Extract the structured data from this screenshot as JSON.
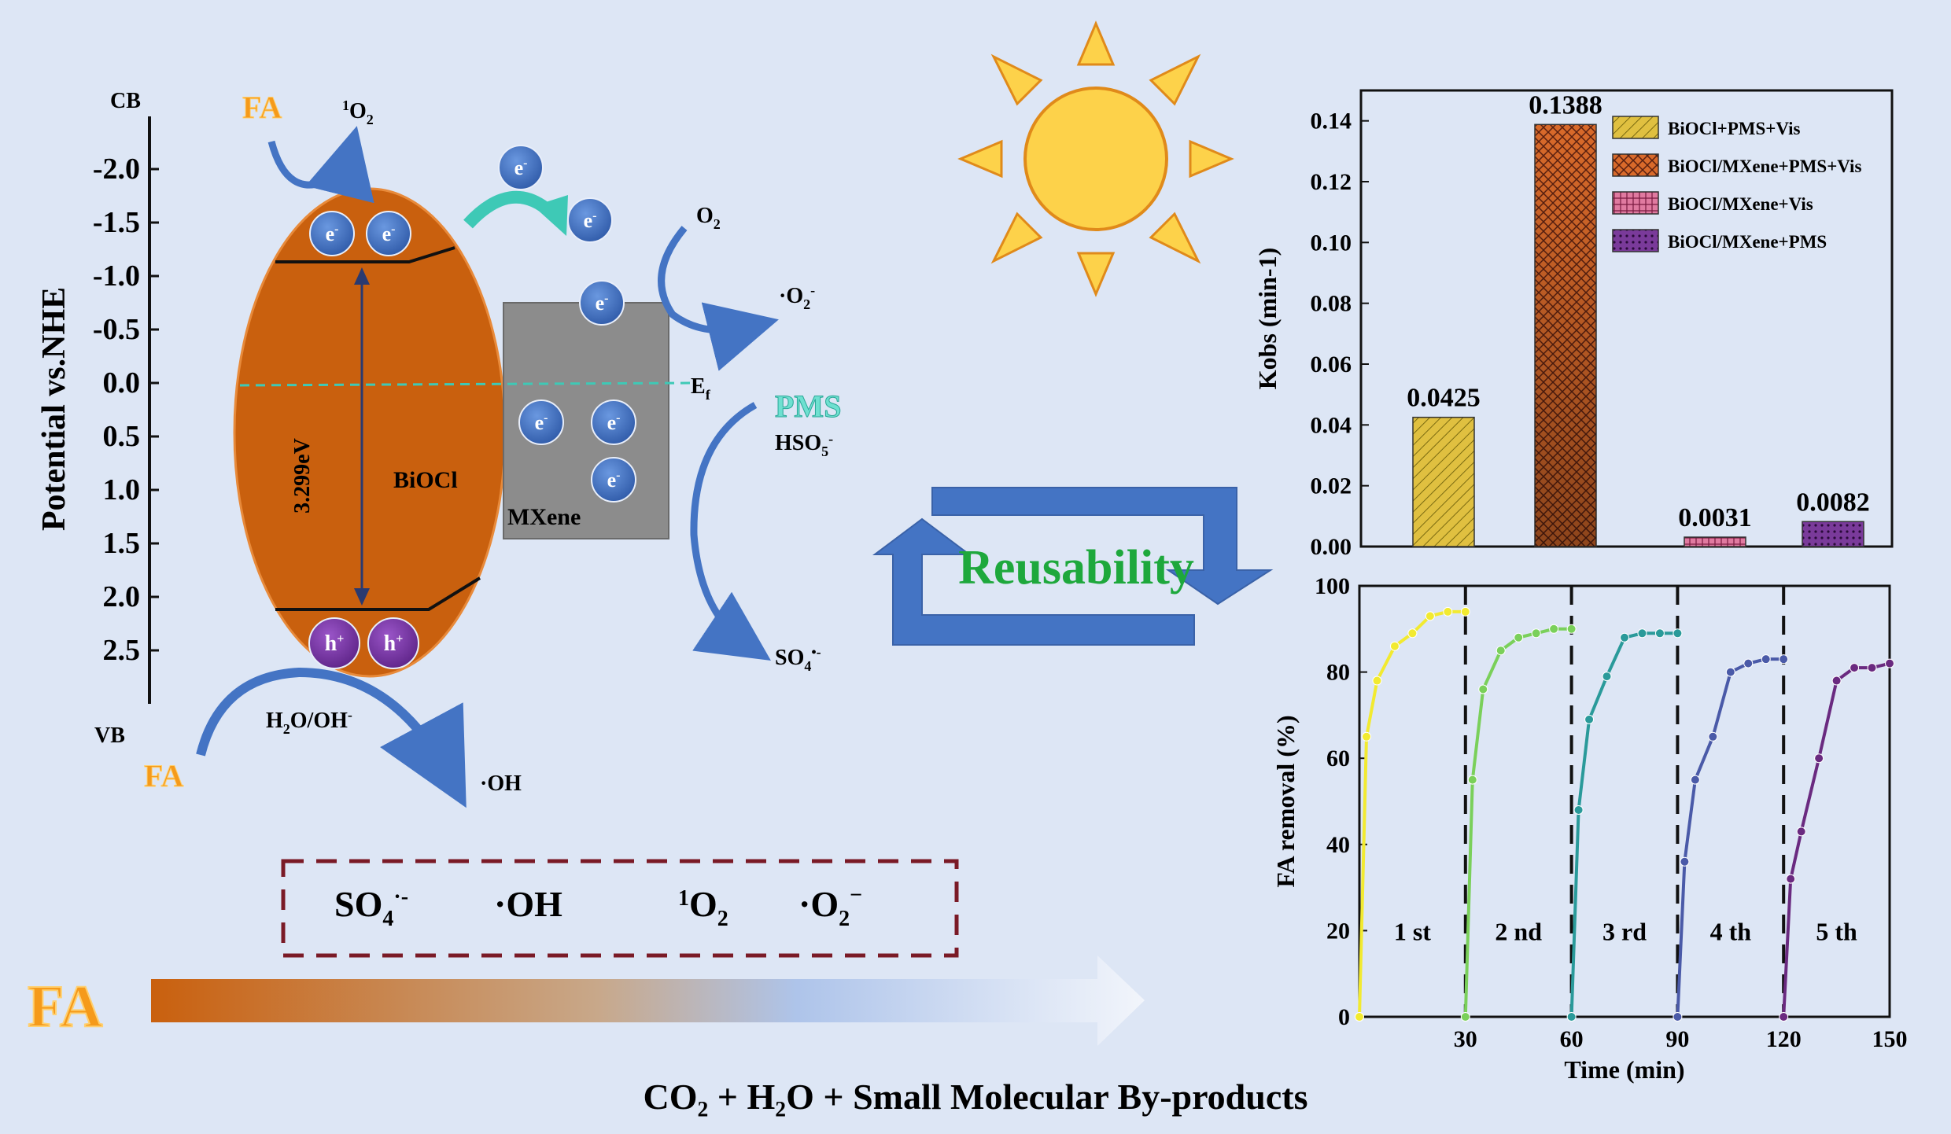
{
  "colors": {
    "background": "#dde6f5",
    "bioclOrange": "#c9600e",
    "mxeneGray": "#8c8c8c",
    "electronBlue": "#3f6fc2",
    "holePurple": "#7a35a8",
    "arrowBlue": "#4474c4",
    "teal": "#3ec9b6",
    "reusabilityGreen": "#1ea83c",
    "faOrange": "#f59a1a",
    "dashedBox": "#7a1a26",
    "sunYellow": "#fdd24a",
    "sunOutline": "#e08a1a"
  },
  "energy_diagram": {
    "cb_label": "CB",
    "vb_label": "VB",
    "axis_title": "Potential vs.NHE",
    "ticks": [
      "-2.0",
      "-1.5",
      "-1.0",
      "-0.5",
      "0.0",
      "0.5",
      "1.0",
      "1.5",
      "2.0",
      "2.5"
    ],
    "bandgap_label": "3.299eV",
    "biocl_label": "BiOCl",
    "mxene_label": "MXene",
    "ef_label": "E",
    "ef_sub": "f",
    "electron": "e",
    "electron_sup": "-",
    "hole": "h",
    "hole_sup": "+",
    "fa_label": "FA",
    "singlet_sup": "1",
    "singlet_main": "O",
    "singlet_sub": "2",
    "o2_main": "O",
    "o2_sub": "2",
    "superoxide_main": "·O",
    "superoxide_sub": "2",
    "superoxide_sup": "-",
    "pms_label": "PMS",
    "hso5_main": "HSO",
    "hso5_sub": "5",
    "hso5_sup": "-",
    "so4_main": "SO",
    "so4_sub": "4",
    "so4_sup": "•-",
    "h2o_p1": "H",
    "h2o_sub": "2",
    "h2o_p2": "O/OH",
    "h2o_sup": "-",
    "oh_label": "·OH"
  },
  "species_box": {
    "so4_main": "SO",
    "so4_sub": "4",
    "so4_sup": "·-",
    "oh": "·OH",
    "singlet_sup": "1",
    "singlet_main": "O",
    "singlet_sub": "2",
    "superoxide_main": "·O",
    "superoxide_sub": "2",
    "superoxide_sup": "−"
  },
  "bottom": {
    "fa_label": "FA",
    "products": "CO₂ + H₂O + Small Molecular By-products"
  },
  "reusability_label": "Reusability",
  "chart_data": [
    {
      "type": "bar",
      "ylabel": "Kobs (min-1)",
      "ylim": [
        0,
        0.15
      ],
      "yticks": [
        "0.00",
        "0.02",
        "0.04",
        "0.06",
        "0.08",
        "0.10",
        "0.12",
        "0.14"
      ],
      "series": [
        {
          "name": "BiOCl+PMS+Vis",
          "value": 0.0425,
          "label": "0.0425",
          "color": "#e0c040"
        },
        {
          "name": "BiOCl/MXene+PMS+Vis",
          "value": 0.1388,
          "label": "0.1388",
          "color": "#d96a2a"
        },
        {
          "name": "BiOCl/MXene+Vis",
          "value": 0.0031,
          "label": "0.0031",
          "color": "#d05a8a"
        },
        {
          "name": "BiOCl/MXene+PMS",
          "value": 0.0082,
          "label": "0.0082",
          "color": "#6a2a8a"
        }
      ]
    },
    {
      "type": "line",
      "xlabel": "Time (min)",
      "ylabel": "FA removal (%)",
      "xlim": [
        0,
        150
      ],
      "ylim": [
        0,
        100
      ],
      "xticks": [
        "30",
        "60",
        "90",
        "120",
        "150"
      ],
      "yticks": [
        "0",
        "20",
        "40",
        "60",
        "80",
        "100"
      ],
      "cycle_boundaries": [
        30,
        60,
        90,
        120
      ],
      "series": [
        {
          "name": "1 st",
          "color": "#f2ea30",
          "x": [
            0,
            2,
            5,
            10,
            15,
            20,
            25,
            30
          ],
          "y": [
            0,
            65,
            78,
            86,
            89,
            93,
            94,
            94
          ]
        },
        {
          "name": "2 nd",
          "color": "#7ad05a",
          "x": [
            30,
            32,
            35,
            40,
            45,
            50,
            55,
            60
          ],
          "y": [
            0,
            55,
            76,
            85,
            88,
            89,
            90,
            90
          ]
        },
        {
          "name": "3 rd",
          "color": "#2a9a9a",
          "x": [
            60,
            62,
            65,
            70,
            75,
            80,
            85,
            90
          ],
          "y": [
            0,
            48,
            69,
            79,
            88,
            89,
            89,
            89
          ]
        },
        {
          "name": "4 th",
          "color": "#4a5aa8",
          "x": [
            90,
            92,
            95,
            100,
            105,
            110,
            115,
            120
          ],
          "y": [
            0,
            36,
            55,
            65,
            80,
            82,
            83,
            83
          ]
        },
        {
          "name": "5 th",
          "color": "#6a2a80",
          "x": [
            120,
            122,
            125,
            130,
            135,
            140,
            145,
            150
          ],
          "y": [
            0,
            32,
            43,
            60,
            78,
            81,
            81,
            82
          ]
        }
      ]
    }
  ]
}
